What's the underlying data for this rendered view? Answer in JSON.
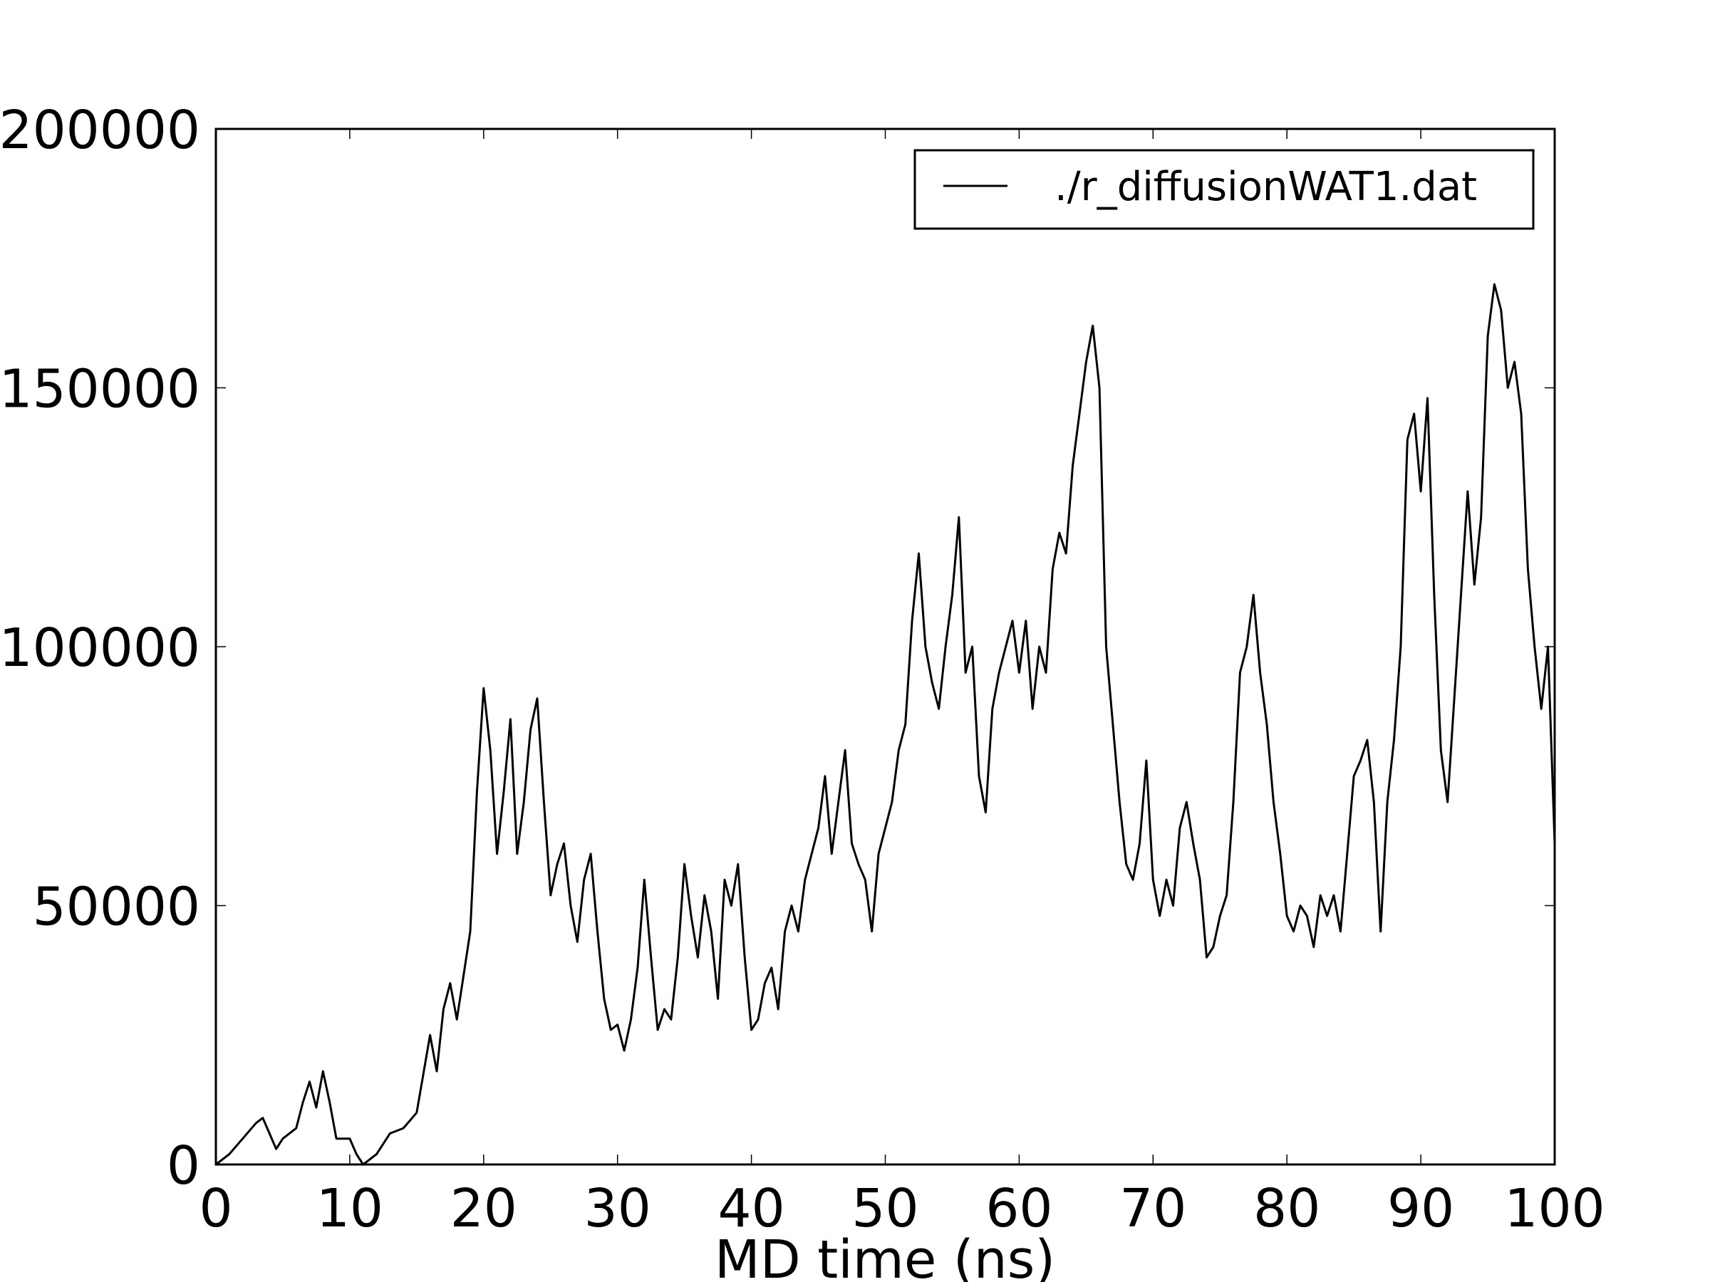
{
  "chart_data": {
    "type": "line",
    "xlabel": "MD time (ns)",
    "xlim": [
      0,
      100
    ],
    "xticks": [
      0,
      10,
      20,
      30,
      40,
      50,
      60,
      70,
      80,
      90,
      100
    ],
    "ylim": [
      0,
      200000
    ],
    "yticks": [
      0,
      50000,
      100000,
      150000,
      200000
    ],
    "legend": "upper right",
    "x": [
      0,
      1,
      2,
      3,
      3.5,
      4,
      4.5,
      5,
      6,
      6.5,
      7,
      7.5,
      8,
      8.5,
      9,
      10,
      10.5,
      11,
      12,
      13,
      14,
      15,
      16,
      16.5,
      17,
      17.5,
      18,
      19,
      19.5,
      20,
      20.5,
      21,
      21.5,
      22,
      22.5,
      23,
      23.5,
      24,
      24.5,
      25,
      25.5,
      26,
      26.5,
      27,
      27.5,
      28,
      28.5,
      29,
      29.5,
      30,
      30.5,
      31,
      31.5,
      32,
      32.5,
      33,
      33.5,
      34,
      34.5,
      35,
      35.5,
      36,
      36.5,
      37,
      37.5,
      38,
      38.5,
      39,
      39.5,
      40,
      40.5,
      41,
      41.5,
      42,
      42.5,
      43,
      43.5,
      44,
      44.5,
      45,
      45.5,
      46,
      46.5,
      47,
      47.5,
      48,
      48.5,
      49,
      49.5,
      50,
      50.5,
      51,
      51.5,
      52,
      52.5,
      53,
      53.5,
      54,
      54.5,
      55,
      55.5,
      56,
      56.5,
      57,
      57.5,
      58,
      58.5,
      59,
      59.5,
      60,
      60.5,
      61,
      61.5,
      62,
      62.5,
      63,
      63.5,
      64,
      64.5,
      65,
      65.5,
      66,
      66.5,
      67,
      67.5,
      68,
      68.5,
      69,
      69.5,
      70,
      70.5,
      71,
      71.5,
      72,
      72.5,
      73,
      73.5,
      74,
      74.5,
      75,
      75.5,
      76,
      76.5,
      77,
      77.5,
      78,
      78.5,
      79,
      79.5,
      80,
      80.5,
      81,
      81.5,
      82,
      82.5,
      83,
      83.5,
      84,
      84.5,
      85,
      85.5,
      86,
      86.5,
      87,
      87.5,
      88,
      88.5,
      89,
      89.5,
      90,
      90.5,
      91,
      91.5,
      92,
      92.5,
      93,
      93.5,
      94,
      94.5,
      95,
      95.5,
      96,
      96.5,
      97,
      97.5,
      98,
      98.5,
      99,
      99.5,
      100
    ],
    "series": [
      {
        "name": "./r_diffusionWAT1.dat",
        "color": "#000000",
        "values": [
          0,
          2000,
          5000,
          8000,
          9000,
          6000,
          3000,
          5000,
          7000,
          12000,
          16000,
          11000,
          18000,
          12000,
          5000,
          5000,
          2000,
          0,
          2000,
          6000,
          7000,
          10000,
          25000,
          18000,
          30000,
          35000,
          28000,
          45000,
          72000,
          92000,
          80000,
          60000,
          72000,
          86000,
          60000,
          70000,
          84000,
          90000,
          70000,
          52000,
          58000,
          62000,
          50000,
          43000,
          55000,
          60000,
          45000,
          32000,
          26000,
          27000,
          22000,
          28000,
          38000,
          55000,
          40000,
          26000,
          30000,
          28000,
          40000,
          58000,
          48000,
          40000,
          52000,
          45000,
          32000,
          55000,
          50000,
          58000,
          40000,
          26000,
          28000,
          35000,
          38000,
          30000,
          45000,
          50000,
          45000,
          55000,
          60000,
          65000,
          75000,
          60000,
          70000,
          80000,
          62000,
          58000,
          55000,
          45000,
          60000,
          65000,
          70000,
          80000,
          85000,
          105000,
          118000,
          100000,
          93000,
          88000,
          100000,
          110000,
          125000,
          95000,
          100000,
          75000,
          68000,
          88000,
          95000,
          100000,
          105000,
          95000,
          105000,
          88000,
          100000,
          95000,
          115000,
          122000,
          118000,
          135000,
          145000,
          155000,
          162000,
          150000,
          100000,
          85000,
          70000,
          58000,
          55000,
          62000,
          78000,
          55000,
          48000,
          55000,
          50000,
          65000,
          70000,
          62000,
          55000,
          40000,
          42000,
          48000,
          52000,
          70000,
          95000,
          100000,
          110000,
          95000,
          85000,
          70000,
          60000,
          48000,
          45000,
          50000,
          48000,
          42000,
          52000,
          48000,
          52000,
          45000,
          60000,
          75000,
          78000,
          82000,
          70000,
          45000,
          70000,
          82000,
          100000,
          140000,
          145000,
          130000,
          148000,
          110000,
          80000,
          70000,
          90000,
          110000,
          130000,
          112000,
          125000,
          160000,
          170000,
          165000,
          150000,
          155000,
          145000,
          115000,
          100000,
          88000,
          100000,
          62000
        ]
      }
    ]
  }
}
